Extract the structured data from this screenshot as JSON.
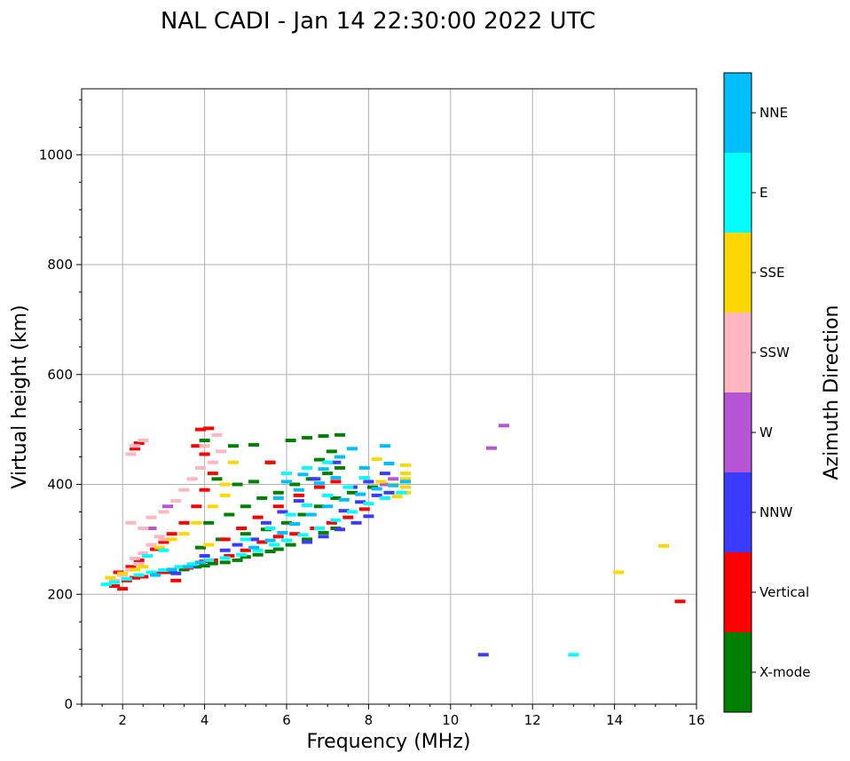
{
  "chart_data": {
    "type": "scatter",
    "title": "NAL CADI - Jan 14 22:30:00 2022 UTC",
    "xlabel": "Frequency (MHz)",
    "ylabel": "Virtual height (km)",
    "xlim": [
      1,
      16
    ],
    "ylim": [
      0,
      1120
    ],
    "xticks": [
      2,
      4,
      6,
      8,
      10,
      12,
      14,
      16
    ],
    "yticks": [
      0,
      200,
      400,
      600,
      800,
      1000
    ],
    "grid": true,
    "colorbar": {
      "label": "Azimuth Direction",
      "categories": [
        {
          "name": "X-mode",
          "color": "#008000"
        },
        {
          "name": "Vertical",
          "color": "#ff0000"
        },
        {
          "name": "NNW",
          "color": "#3b3bff"
        },
        {
          "name": "W",
          "color": "#b555d6"
        },
        {
          "name": "SSW",
          "color": "#ffb6c1"
        },
        {
          "name": "SSE",
          "color": "#ffd700"
        },
        {
          "name": "E",
          "color": "#00ffff"
        },
        {
          "name": "NNE",
          "color": "#00bfff"
        }
      ]
    },
    "series": [
      {
        "name": "X-mode",
        "points": [
          [
            3.2,
            240
          ],
          [
            3.5,
            245
          ],
          [
            3.8,
            250
          ],
          [
            4.0,
            252
          ],
          [
            4.2,
            256
          ],
          [
            4.5,
            258
          ],
          [
            4.8,
            262
          ],
          [
            5.0,
            268
          ],
          [
            5.3,
            272
          ],
          [
            5.6,
            278
          ],
          [
            5.8,
            282
          ],
          [
            6.1,
            290
          ],
          [
            6.5,
            300
          ],
          [
            6.9,
            312
          ],
          [
            7.2,
            320
          ],
          [
            4.1,
            330
          ],
          [
            4.6,
            345
          ],
          [
            5.0,
            360
          ],
          [
            5.4,
            375
          ],
          [
            5.8,
            385
          ],
          [
            6.2,
            400
          ],
          [
            6.6,
            410
          ],
          [
            7.0,
            420
          ],
          [
            7.3,
            430
          ],
          [
            4.0,
            480
          ],
          [
            4.7,
            470
          ],
          [
            5.2,
            472
          ],
          [
            5.6,
            440
          ],
          [
            6.1,
            480
          ],
          [
            6.5,
            485
          ],
          [
            6.9,
            488
          ],
          [
            7.3,
            490
          ],
          [
            6.8,
            445
          ],
          [
            7.1,
            460
          ],
          [
            4.3,
            410
          ],
          [
            4.8,
            400
          ],
          [
            5.2,
            405
          ],
          [
            3.9,
            285
          ],
          [
            4.4,
            300
          ],
          [
            5.0,
            310
          ],
          [
            5.5,
            318
          ],
          [
            6.0,
            330
          ],
          [
            6.4,
            345
          ],
          [
            6.8,
            360
          ],
          [
            7.2,
            375
          ],
          [
            7.6,
            385
          ],
          [
            8.1,
            395
          ]
        ]
      },
      {
        "name": "Vertical",
        "points": [
          [
            1.8,
            215
          ],
          [
            2.0,
            210
          ],
          [
            2.1,
            225
          ],
          [
            2.3,
            230
          ],
          [
            2.5,
            232
          ],
          [
            2.8,
            238
          ],
          [
            3.0,
            240
          ],
          [
            1.9,
            240
          ],
          [
            2.2,
            250
          ],
          [
            2.4,
            262
          ],
          [
            2.6,
            270
          ],
          [
            2.8,
            282
          ],
          [
            3.0,
            295
          ],
          [
            3.2,
            310
          ],
          [
            3.5,
            330
          ],
          [
            3.8,
            360
          ],
          [
            4.0,
            390
          ],
          [
            4.2,
            420
          ],
          [
            4.0,
            455
          ],
          [
            3.8,
            470
          ],
          [
            3.9,
            500
          ],
          [
            4.1,
            502
          ],
          [
            2.3,
            465
          ],
          [
            2.4,
            475
          ],
          [
            4.0,
            260
          ],
          [
            4.2,
            262
          ],
          [
            4.6,
            270
          ],
          [
            5.0,
            280
          ],
          [
            5.4,
            295
          ],
          [
            5.8,
            305
          ],
          [
            6.2,
            310
          ],
          [
            6.7,
            320
          ],
          [
            7.1,
            330
          ],
          [
            7.5,
            340
          ],
          [
            7.9,
            355
          ],
          [
            5.6,
            440
          ],
          [
            4.5,
            300
          ],
          [
            4.9,
            320
          ],
          [
            5.3,
            340
          ],
          [
            5.8,
            360
          ],
          [
            6.3,
            380
          ],
          [
            6.8,
            395
          ],
          [
            7.2,
            405
          ],
          [
            15.6,
            187
          ],
          [
            3.3,
            225
          ],
          [
            3.6,
            248
          ]
        ]
      },
      {
        "name": "NNW",
        "points": [
          [
            6.5,
            295
          ],
          [
            6.9,
            305
          ],
          [
            7.3,
            318
          ],
          [
            7.7,
            330
          ],
          [
            8.0,
            342
          ],
          [
            7.4,
            352
          ],
          [
            7.8,
            368
          ],
          [
            8.2,
            380
          ],
          [
            8.5,
            385
          ],
          [
            7.6,
            395
          ],
          [
            8.0,
            405
          ],
          [
            8.4,
            420
          ],
          [
            7.2,
            440
          ],
          [
            6.7,
            410
          ],
          [
            6.3,
            370
          ],
          [
            5.9,
            350
          ],
          [
            5.5,
            330
          ],
          [
            10.8,
            90
          ],
          [
            4.8,
            290
          ],
          [
            5.2,
            300
          ],
          [
            4.5,
            280
          ],
          [
            4.0,
            270
          ],
          [
            3.7,
            252
          ],
          [
            3.3,
            238
          ]
        ]
      },
      {
        "name": "W",
        "points": [
          [
            11.0,
            466
          ],
          [
            11.3,
            507
          ],
          [
            8.6,
            410
          ],
          [
            2.7,
            320
          ],
          [
            3.1,
            360
          ],
          [
            8.4,
            400
          ]
        ]
      },
      {
        "name": "SSW",
        "points": [
          [
            1.8,
            225
          ],
          [
            2.0,
            235
          ],
          [
            2.2,
            245
          ],
          [
            2.3,
            265
          ],
          [
            2.5,
            275
          ],
          [
            2.7,
            290
          ],
          [
            2.9,
            305
          ],
          [
            2.5,
            320
          ],
          [
            2.2,
            330
          ],
          [
            2.7,
            340
          ],
          [
            3.0,
            350
          ],
          [
            3.3,
            370
          ],
          [
            3.5,
            390
          ],
          [
            3.7,
            410
          ],
          [
            3.9,
            430
          ],
          [
            4.2,
            440
          ],
          [
            4.4,
            460
          ],
          [
            2.3,
            470
          ],
          [
            2.5,
            480
          ],
          [
            2.2,
            455
          ],
          [
            4.0,
            470
          ],
          [
            4.3,
            490
          ],
          [
            3.0,
            300
          ],
          [
            2.4,
            255
          ]
        ]
      },
      {
        "name": "SSE",
        "points": [
          [
            1.7,
            230
          ],
          [
            2.0,
            238
          ],
          [
            2.3,
            245
          ],
          [
            2.5,
            250
          ],
          [
            2.9,
            285
          ],
          [
            3.2,
            300
          ],
          [
            3.5,
            310
          ],
          [
            3.8,
            330
          ],
          [
            4.2,
            360
          ],
          [
            4.5,
            380
          ],
          [
            4.7,
            440
          ],
          [
            8.2,
            446
          ],
          [
            8.7,
            378
          ],
          [
            8.9,
            385
          ],
          [
            8.9,
            395
          ],
          [
            8.9,
            410
          ],
          [
            8.9,
            420
          ],
          [
            8.9,
            435
          ],
          [
            8.6,
            400
          ],
          [
            8.3,
            405
          ],
          [
            14.1,
            240
          ],
          [
            15.2,
            288
          ],
          [
            4.5,
            400
          ],
          [
            4.1,
            290
          ]
        ]
      },
      {
        "name": "E",
        "points": [
          [
            1.6,
            218
          ],
          [
            1.8,
            222
          ],
          [
            2.1,
            228
          ],
          [
            2.4,
            235
          ],
          [
            2.7,
            240
          ],
          [
            3.0,
            244
          ],
          [
            3.4,
            250
          ],
          [
            3.7,
            255
          ],
          [
            4.1,
            262
          ],
          [
            4.5,
            266
          ],
          [
            4.9,
            272
          ],
          [
            5.3,
            280
          ],
          [
            5.7,
            290
          ],
          [
            6.0,
            298
          ],
          [
            6.4,
            308
          ],
          [
            6.8,
            320
          ],
          [
            7.2,
            335
          ],
          [
            7.6,
            350
          ],
          [
            8.0,
            365
          ],
          [
            8.4,
            375
          ],
          [
            8.8,
            385
          ],
          [
            5.0,
            300
          ],
          [
            5.6,
            320
          ],
          [
            6.1,
            345
          ],
          [
            6.5,
            362
          ],
          [
            7.0,
            380
          ],
          [
            7.5,
            395
          ],
          [
            7.9,
            412
          ],
          [
            6.0,
            420
          ],
          [
            6.5,
            430
          ],
          [
            7.0,
            440
          ],
          [
            13.0,
            90
          ],
          [
            2.6,
            270
          ],
          [
            3.0,
            280
          ]
        ]
      },
      {
        "name": "NNE",
        "points": [
          [
            2.8,
            235
          ],
          [
            3.2,
            245
          ],
          [
            3.6,
            250
          ],
          [
            3.9,
            258
          ],
          [
            5.2,
            285
          ],
          [
            5.6,
            298
          ],
          [
            5.9,
            312
          ],
          [
            6.2,
            328
          ],
          [
            6.6,
            345
          ],
          [
            7.0,
            360
          ],
          [
            7.4,
            372
          ],
          [
            7.8,
            382
          ],
          [
            8.2,
            392
          ],
          [
            8.6,
            398
          ],
          [
            8.9,
            405
          ],
          [
            6.0,
            405
          ],
          [
            6.4,
            418
          ],
          [
            6.9,
            428
          ],
          [
            7.3,
            450
          ],
          [
            7.6,
            465
          ],
          [
            8.4,
            470
          ],
          [
            5.8,
            375
          ],
          [
            6.3,
            390
          ],
          [
            6.8,
            402
          ],
          [
            7.2,
            412
          ],
          [
            7.9,
            430
          ],
          [
            8.5,
            438
          ]
        ]
      }
    ]
  }
}
